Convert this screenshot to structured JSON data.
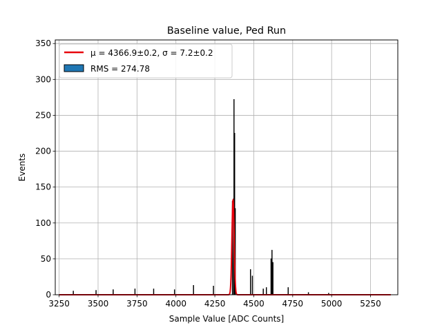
{
  "chart_data": {
    "type": "bar",
    "title": "Baseline value, Ped Run",
    "xlabel": "Sample Value [ADC Counts]",
    "ylabel": "Events",
    "xlim": [
      3225,
      5425
    ],
    "ylim": [
      0,
      355
    ],
    "xticks": [
      3250,
      3500,
      3750,
      4000,
      4250,
      4500,
      4750,
      5000,
      5250
    ],
    "yticks": [
      0,
      50,
      100,
      150,
      200,
      250,
      300,
      350
    ],
    "grid": true,
    "legend_position": "top-left",
    "legend": [
      {
        "label": "μ = 4366.9±0.2, σ = 7.2±0.2",
        "kind": "line",
        "color": "#e8000b"
      },
      {
        "label": "RMS = 274.78",
        "kind": "patch",
        "color": "#1f77b4"
      }
    ],
    "histogram": {
      "name": "RMS = 274.78",
      "edge_color": "#000000",
      "fill_color": "#1f77b4",
      "bin_width": 2,
      "peaks": [
        {
          "x": 3340,
          "y": 5
        },
        {
          "x": 3485,
          "y": 6
        },
        {
          "x": 3595,
          "y": 7
        },
        {
          "x": 3735,
          "y": 8
        },
        {
          "x": 3855,
          "y": 8
        },
        {
          "x": 3990,
          "y": 7
        },
        {
          "x": 4112,
          "y": 13
        },
        {
          "x": 4240,
          "y": 12
        },
        {
          "x": 4362,
          "y": 130
        },
        {
          "x": 4369,
          "y": 110
        },
        {
          "x": 4372,
          "y": 272
        },
        {
          "x": 4376,
          "y": 225
        },
        {
          "x": 4380,
          "y": 120
        },
        {
          "x": 4478,
          "y": 35
        },
        {
          "x": 4490,
          "y": 26
        },
        {
          "x": 4560,
          "y": 8
        },
        {
          "x": 4580,
          "y": 10
        },
        {
          "x": 4610,
          "y": 50
        },
        {
          "x": 4615,
          "y": 62
        },
        {
          "x": 4622,
          "y": 45
        },
        {
          "x": 4720,
          "y": 10
        },
        {
          "x": 4850,
          "y": 3
        },
        {
          "x": 4980,
          "y": 2
        }
      ]
    },
    "fit": {
      "name": "μ = 4366.9±0.2, σ = 7.2±0.2",
      "type": "gaussian",
      "mu": 4366.9,
      "sigma": 7.2,
      "amplitude": 132,
      "x_range": [
        3250,
        5380
      ],
      "color": "#e8000b"
    }
  }
}
